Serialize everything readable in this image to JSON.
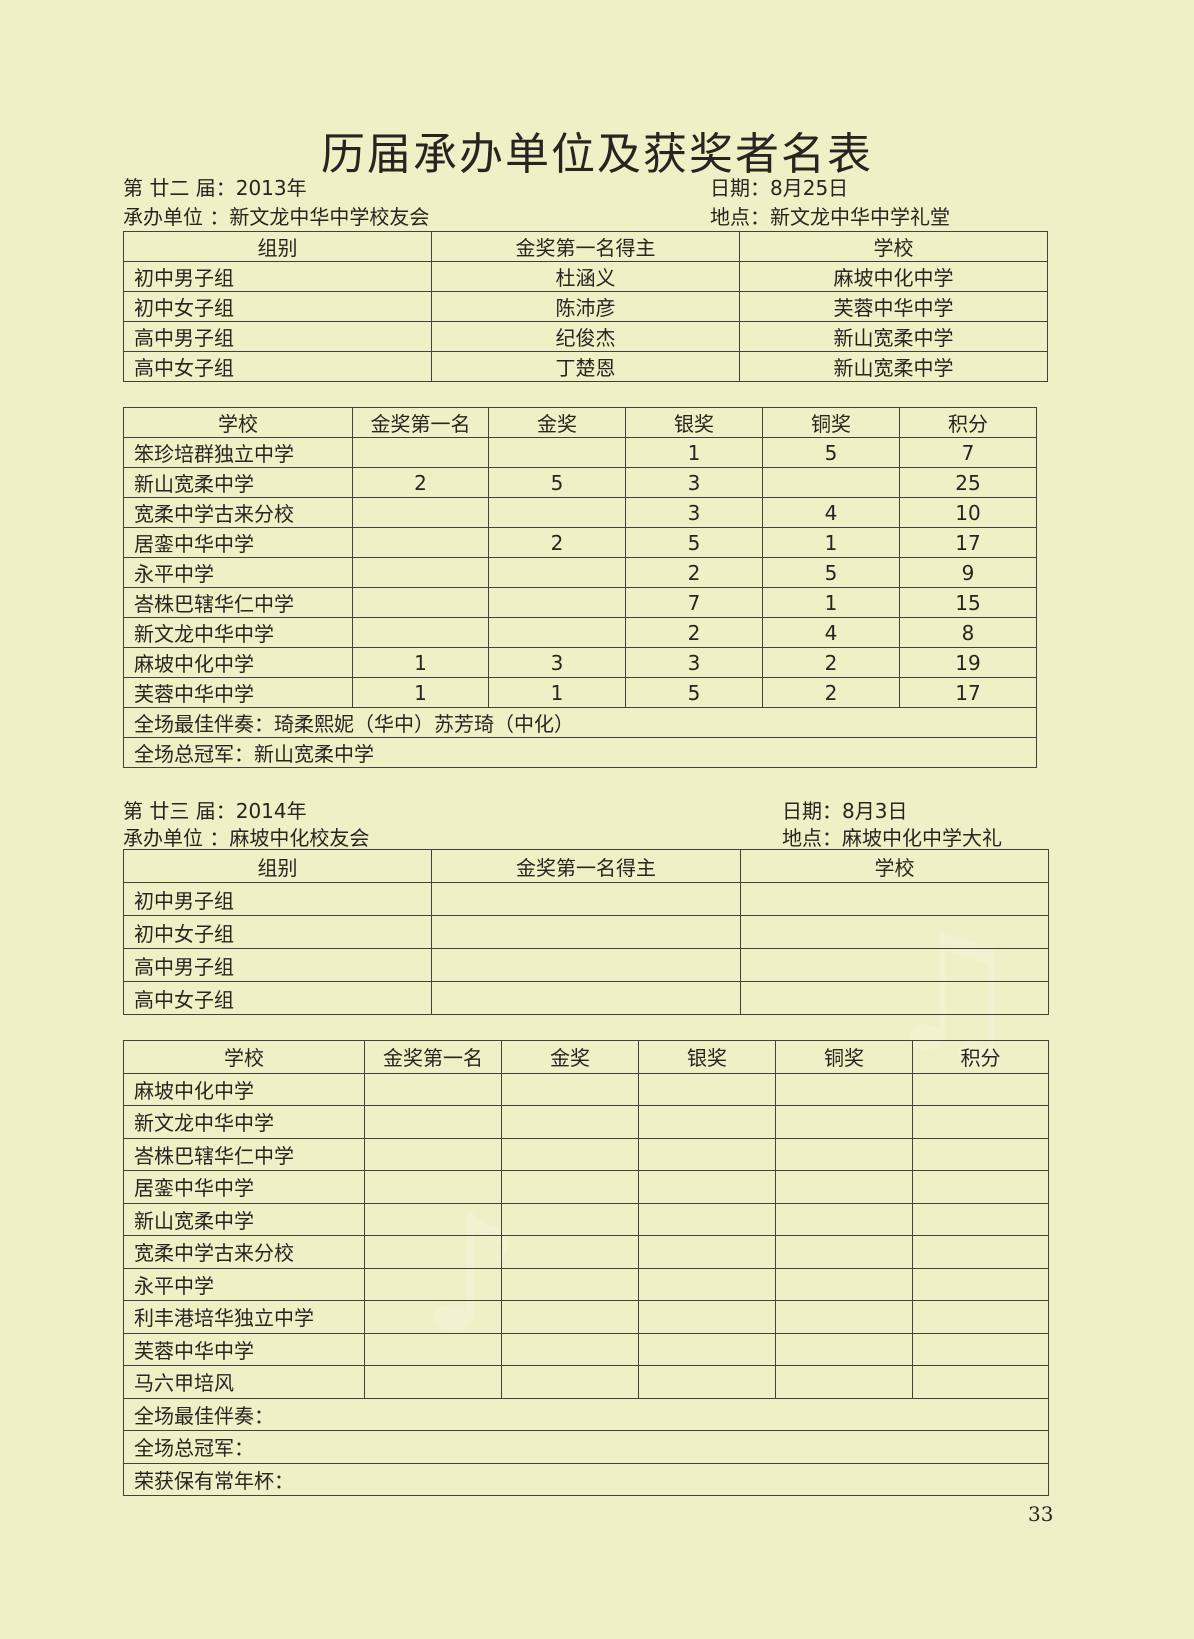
{
  "title": "历届承办单位及获奖者名表",
  "sections": [
    {
      "edition": "第 廿二 届：2013年",
      "date": "日期：8月25日",
      "host": "承办单位 ：新文龙中华中学校友会",
      "venue": "地点：新文龙中华中学礼堂",
      "winners_headers": [
        "组别",
        "金奖第一名得主",
        "学校"
      ],
      "winners": [
        [
          "初中男子组",
          "杜涵义",
          "麻坡中化中学"
        ],
        [
          "初中女子组",
          "陈沛彦",
          "芙蓉中华中学"
        ],
        [
          "高中男子组",
          "纪俊杰",
          "新山宽柔中学"
        ],
        [
          "高中女子组",
          "丁楚恩",
          "新山宽柔中学"
        ]
      ],
      "schools_headers": [
        "学校",
        "金奖第一名",
        "金奖",
        "银奖",
        "铜奖",
        "积分"
      ],
      "schools": [
        [
          "笨珍培群独立中学",
          "",
          "",
          "1",
          "5",
          "7"
        ],
        [
          "新山宽柔中学",
          "2",
          "5",
          "3",
          "",
          "25"
        ],
        [
          "宽柔中学古来分校",
          "",
          "",
          "3",
          "4",
          "10"
        ],
        [
          "居銮中华中学",
          "",
          "2",
          "5",
          "1",
          "17"
        ],
        [
          "永平中学",
          "",
          "",
          "2",
          "5",
          "9"
        ],
        [
          "峇株巴辖华仁中学",
          "",
          "",
          "7",
          "1",
          "15"
        ],
        [
          "新文龙中华中学",
          "",
          "",
          "2",
          "4",
          "8"
        ],
        [
          "麻坡中化中学",
          "1",
          "3",
          "3",
          "2",
          "19"
        ],
        [
          "芙蓉中华中学",
          "1",
          "1",
          "5",
          "2",
          "17"
        ]
      ],
      "footer": [
        "全场最佳伴奏：琦柔熙妮（华中）苏芳琦（中化）",
        "全场总冠军：新山宽柔中学"
      ]
    },
    {
      "edition": "第 廿三 届：2014年",
      "date": "日期：8月3日",
      "host": "承办单位 ：麻坡中化校友会",
      "venue": "地点：麻坡中化中学大礼",
      "winners_headers": [
        "组别",
        "金奖第一名得主",
        "学校"
      ],
      "winners": [
        [
          "初中男子组",
          "",
          ""
        ],
        [
          "初中女子组",
          "",
          ""
        ],
        [
          "高中男子组",
          "",
          ""
        ],
        [
          "高中女子组",
          "",
          ""
        ]
      ],
      "schools_headers": [
        "学校",
        "金奖第一名",
        "金奖",
        "银奖",
        "铜奖",
        "积分"
      ],
      "schools": [
        [
          "麻坡中化中学",
          "",
          "",
          "",
          "",
          ""
        ],
        [
          "新文龙中华中学",
          "",
          "",
          "",
          "",
          ""
        ],
        [
          "峇株巴辖华仁中学",
          "",
          "",
          "",
          "",
          ""
        ],
        [
          "居銮中华中学",
          "",
          "",
          "",
          "",
          ""
        ],
        [
          "新山宽柔中学",
          "",
          "",
          "",
          "",
          ""
        ],
        [
          "宽柔中学古来分校",
          "",
          "",
          "",
          "",
          ""
        ],
        [
          "永平中学",
          "",
          "",
          "",
          "",
          ""
        ],
        [
          "利丰港培华独立中学",
          "",
          "",
          "",
          "",
          ""
        ],
        [
          "芙蓉中华中学",
          "",
          "",
          "",
          "",
          ""
        ],
        [
          "马六甲培风",
          "",
          "",
          "",
          "",
          ""
        ]
      ],
      "footer": [
        "全场最佳伴奏：",
        "全场总冠军：",
        "荣获保有常年杯："
      ]
    }
  ],
  "page_number": "33"
}
